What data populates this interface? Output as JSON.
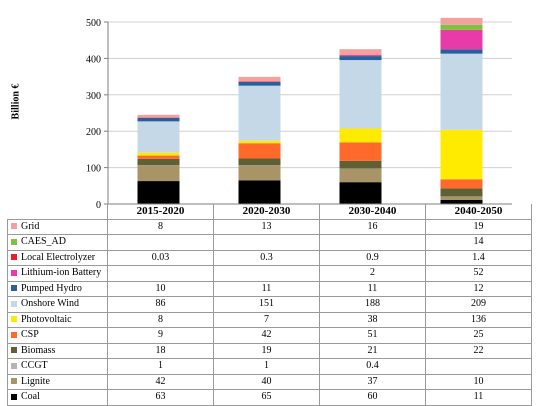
{
  "chart_data": {
    "type": "bar",
    "stacked": true,
    "categories": [
      "2015-2020",
      "2020-2030",
      "2030-2040",
      "2040-2050"
    ],
    "ylabel": "Billion €",
    "ylim": [
      0,
      500
    ],
    "yticks": [
      0,
      100,
      200,
      300,
      400,
      500
    ],
    "series": [
      {
        "name": "Coal",
        "color": "#000000",
        "values": [
          63,
          65,
          60,
          11
        ],
        "labels": [
          "63",
          "65",
          "60",
          "11"
        ]
      },
      {
        "name": "Lignite",
        "color": "#a89466",
        "values": [
          42,
          40,
          37,
          10
        ],
        "labels": [
          "42",
          "40",
          "37",
          "10"
        ]
      },
      {
        "name": "CCGT",
        "color": "#b5b5b5",
        "values": [
          1,
          1,
          0.4,
          null
        ],
        "labels": [
          "1",
          "1",
          "0.4",
          ""
        ]
      },
      {
        "name": "Biomass",
        "color": "#5f6135",
        "values": [
          18,
          19,
          21,
          22
        ],
        "labels": [
          "18",
          "19",
          "21",
          "22"
        ]
      },
      {
        "name": "CSP",
        "color": "#ff6a2b",
        "values": [
          9,
          42,
          51,
          25
        ],
        "labels": [
          "9",
          "42",
          "51",
          "25"
        ]
      },
      {
        "name": "Photovoltaic",
        "color": "#ffeb00",
        "values": [
          8,
          7,
          38,
          136
        ],
        "labels": [
          "8",
          "7",
          "38",
          "136"
        ]
      },
      {
        "name": "Onshore Wind",
        "color": "#c4d8e8",
        "values": [
          86,
          151,
          188,
          209
        ],
        "labels": [
          "86",
          "151",
          "188",
          "209"
        ]
      },
      {
        "name": "Pumped Hydro",
        "color": "#2a5f9e",
        "values": [
          10,
          11,
          11,
          12
        ],
        "labels": [
          "10",
          "11",
          "11",
          "12"
        ]
      },
      {
        "name": "Lithium-ion Battery",
        "color": "#e83aa8",
        "values": [
          null,
          null,
          2,
          52
        ],
        "labels": [
          "",
          "",
          "2",
          "52"
        ]
      },
      {
        "name": "Local Electrolyzer",
        "color": "#ee1c25",
        "values": [
          0.03,
          0.3,
          0.9,
          1.4
        ],
        "labels": [
          "0.03",
          "0.3",
          "0.9",
          "1.4"
        ]
      },
      {
        "name": "CAES_AD",
        "color": "#7ec242",
        "values": [
          null,
          null,
          null,
          14
        ],
        "labels": [
          "",
          "",
          "",
          "14"
        ]
      },
      {
        "name": "Grid",
        "color": "#f4a0a0",
        "values": [
          8,
          13,
          16,
          19
        ],
        "labels": [
          "8",
          "13",
          "16",
          "19"
        ]
      }
    ]
  }
}
